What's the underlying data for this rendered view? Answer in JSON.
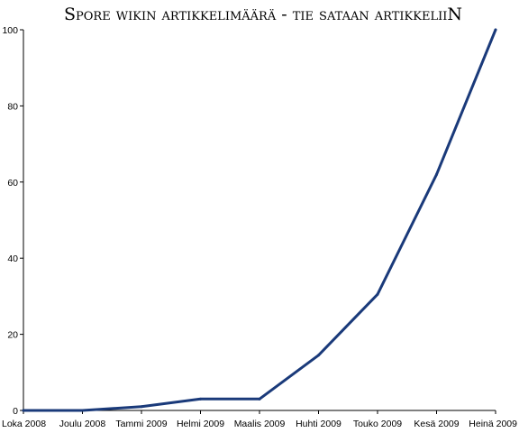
{
  "chart_data": {
    "type": "line",
    "title": "Spore wikin artikkelimäärä - tie sataan artikkeliiN",
    "xlabel": "",
    "ylabel": "",
    "categories": [
      "Loka 2008",
      "Joulu 2008",
      "Tammi 2009",
      "Helmi 2009",
      "Maalis 2009",
      "Huhti 2009",
      "Touko 2009",
      "Kesä 2009",
      "Heinä 2009"
    ],
    "series": [
      {
        "values": [
          0,
          0,
          1,
          3,
          3,
          14.5,
          30.5,
          62,
          100
        ]
      }
    ],
    "ylim": [
      0,
      100
    ],
    "yticks": [
      0,
      20,
      40,
      60,
      80,
      100
    ],
    "grid": false,
    "legend": "none",
    "line_color": "#1a3a7a"
  }
}
